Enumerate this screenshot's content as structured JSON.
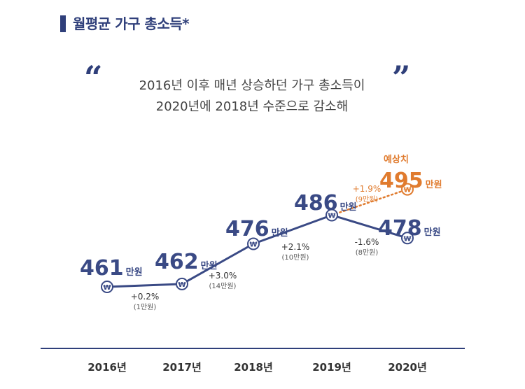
{
  "page": {
    "title": "월평균 가구 총소득*",
    "headline": [
      "2016년 이후 매년 상승하던 가구 총소득이",
      "2020년에 2018년 수준으로 감소해"
    ],
    "quote_open": "“",
    "quote_close": "”"
  },
  "chart_data": {
    "type": "line",
    "title": "월평균 가구 총소득*",
    "categories": [
      "2016년",
      "2017년",
      "2018년",
      "2019년",
      "2020년"
    ],
    "unit": "만원",
    "won_symbol": "₩",
    "series": [
      {
        "values": [
          461,
          462,
          476,
          486,
          478
        ],
        "color": "#3a4a85",
        "style": "solid"
      },
      {
        "x": [
          "2019년",
          "2020년"
        ],
        "values": [
          486,
          495
        ],
        "color": "#e07b2e",
        "style": "dotted",
        "label": "예상치"
      }
    ],
    "changes": [
      {
        "pct": "+0.2%",
        "amount": "(1만원)"
      },
      {
        "pct": "+3.0%",
        "amount": "(14만원)"
      },
      {
        "pct": "+2.1%",
        "amount": "(10만원)"
      },
      {
        "pct": "-1.6%",
        "amount": "(8만원)"
      }
    ],
    "forecast_change": {
      "pct": "+1.9%",
      "amount": "(9만원)"
    },
    "colors": {
      "main": "#3a4a85",
      "forecast": "#e07b2e",
      "axis": "#2f3f7a",
      "text": "#444444"
    }
  }
}
